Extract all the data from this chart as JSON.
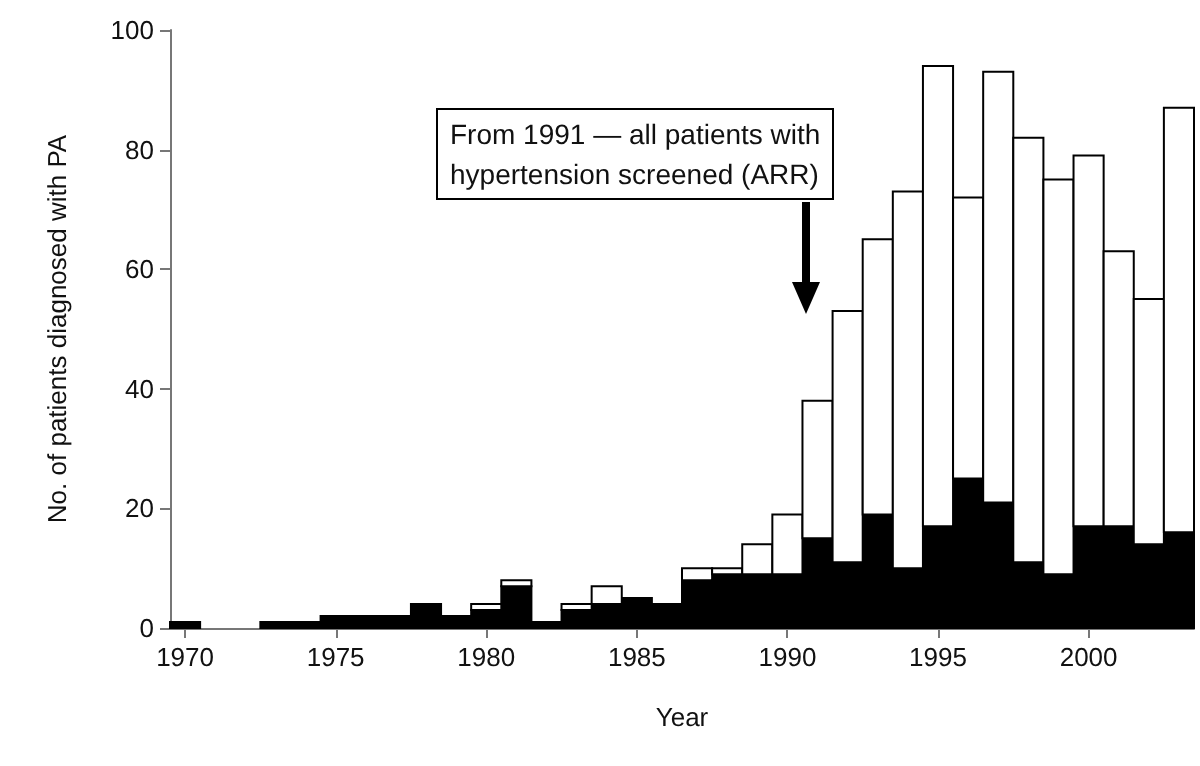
{
  "chart_data": {
    "type": "bar",
    "stacked": true,
    "xlabel": "Year",
    "ylabel": "No. of patients diagnosed with PA",
    "x": [
      1970,
      1971,
      1972,
      1973,
      1974,
      1975,
      1976,
      1977,
      1978,
      1979,
      1980,
      1981,
      1982,
      1983,
      1984,
      1985,
      1986,
      1987,
      1988,
      1989,
      1990,
      1991,
      1992,
      1993,
      1994,
      1995,
      1996,
      1997,
      1998,
      1999,
      2000,
      2001,
      2002,
      2003
    ],
    "series": [
      {
        "color": "#000000",
        "values": [
          1,
          0,
          0,
          1,
          1,
          2,
          2,
          2,
          4,
          2,
          3,
          7,
          1,
          3,
          4,
          5,
          4,
          8,
          9,
          9,
          9,
          15,
          11,
          19,
          10,
          17,
          25,
          21,
          11,
          9,
          17,
          17,
          14,
          16
        ]
      },
      {
        "color": "#ffffff",
        "values": [
          0,
          0,
          0,
          0,
          0,
          0,
          0,
          0,
          0,
          0,
          1,
          1,
          0,
          1,
          3,
          0,
          0,
          2,
          1,
          5,
          10,
          23,
          42,
          46,
          63,
          77,
          47,
          72,
          71,
          66,
          62,
          46,
          41,
          71
        ]
      }
    ],
    "xlim": [
      1969.5,
      2003.5
    ],
    "xticks": [
      1970,
      1975,
      1980,
      1985,
      1990,
      1995,
      2000
    ],
    "ylim": [
      0,
      100
    ],
    "yticks": [
      0,
      20,
      40,
      60,
      80,
      100
    ],
    "grid": false,
    "annotations": [
      "From 1991 — all patients with\nhypertension screened (ARR)"
    ]
  }
}
